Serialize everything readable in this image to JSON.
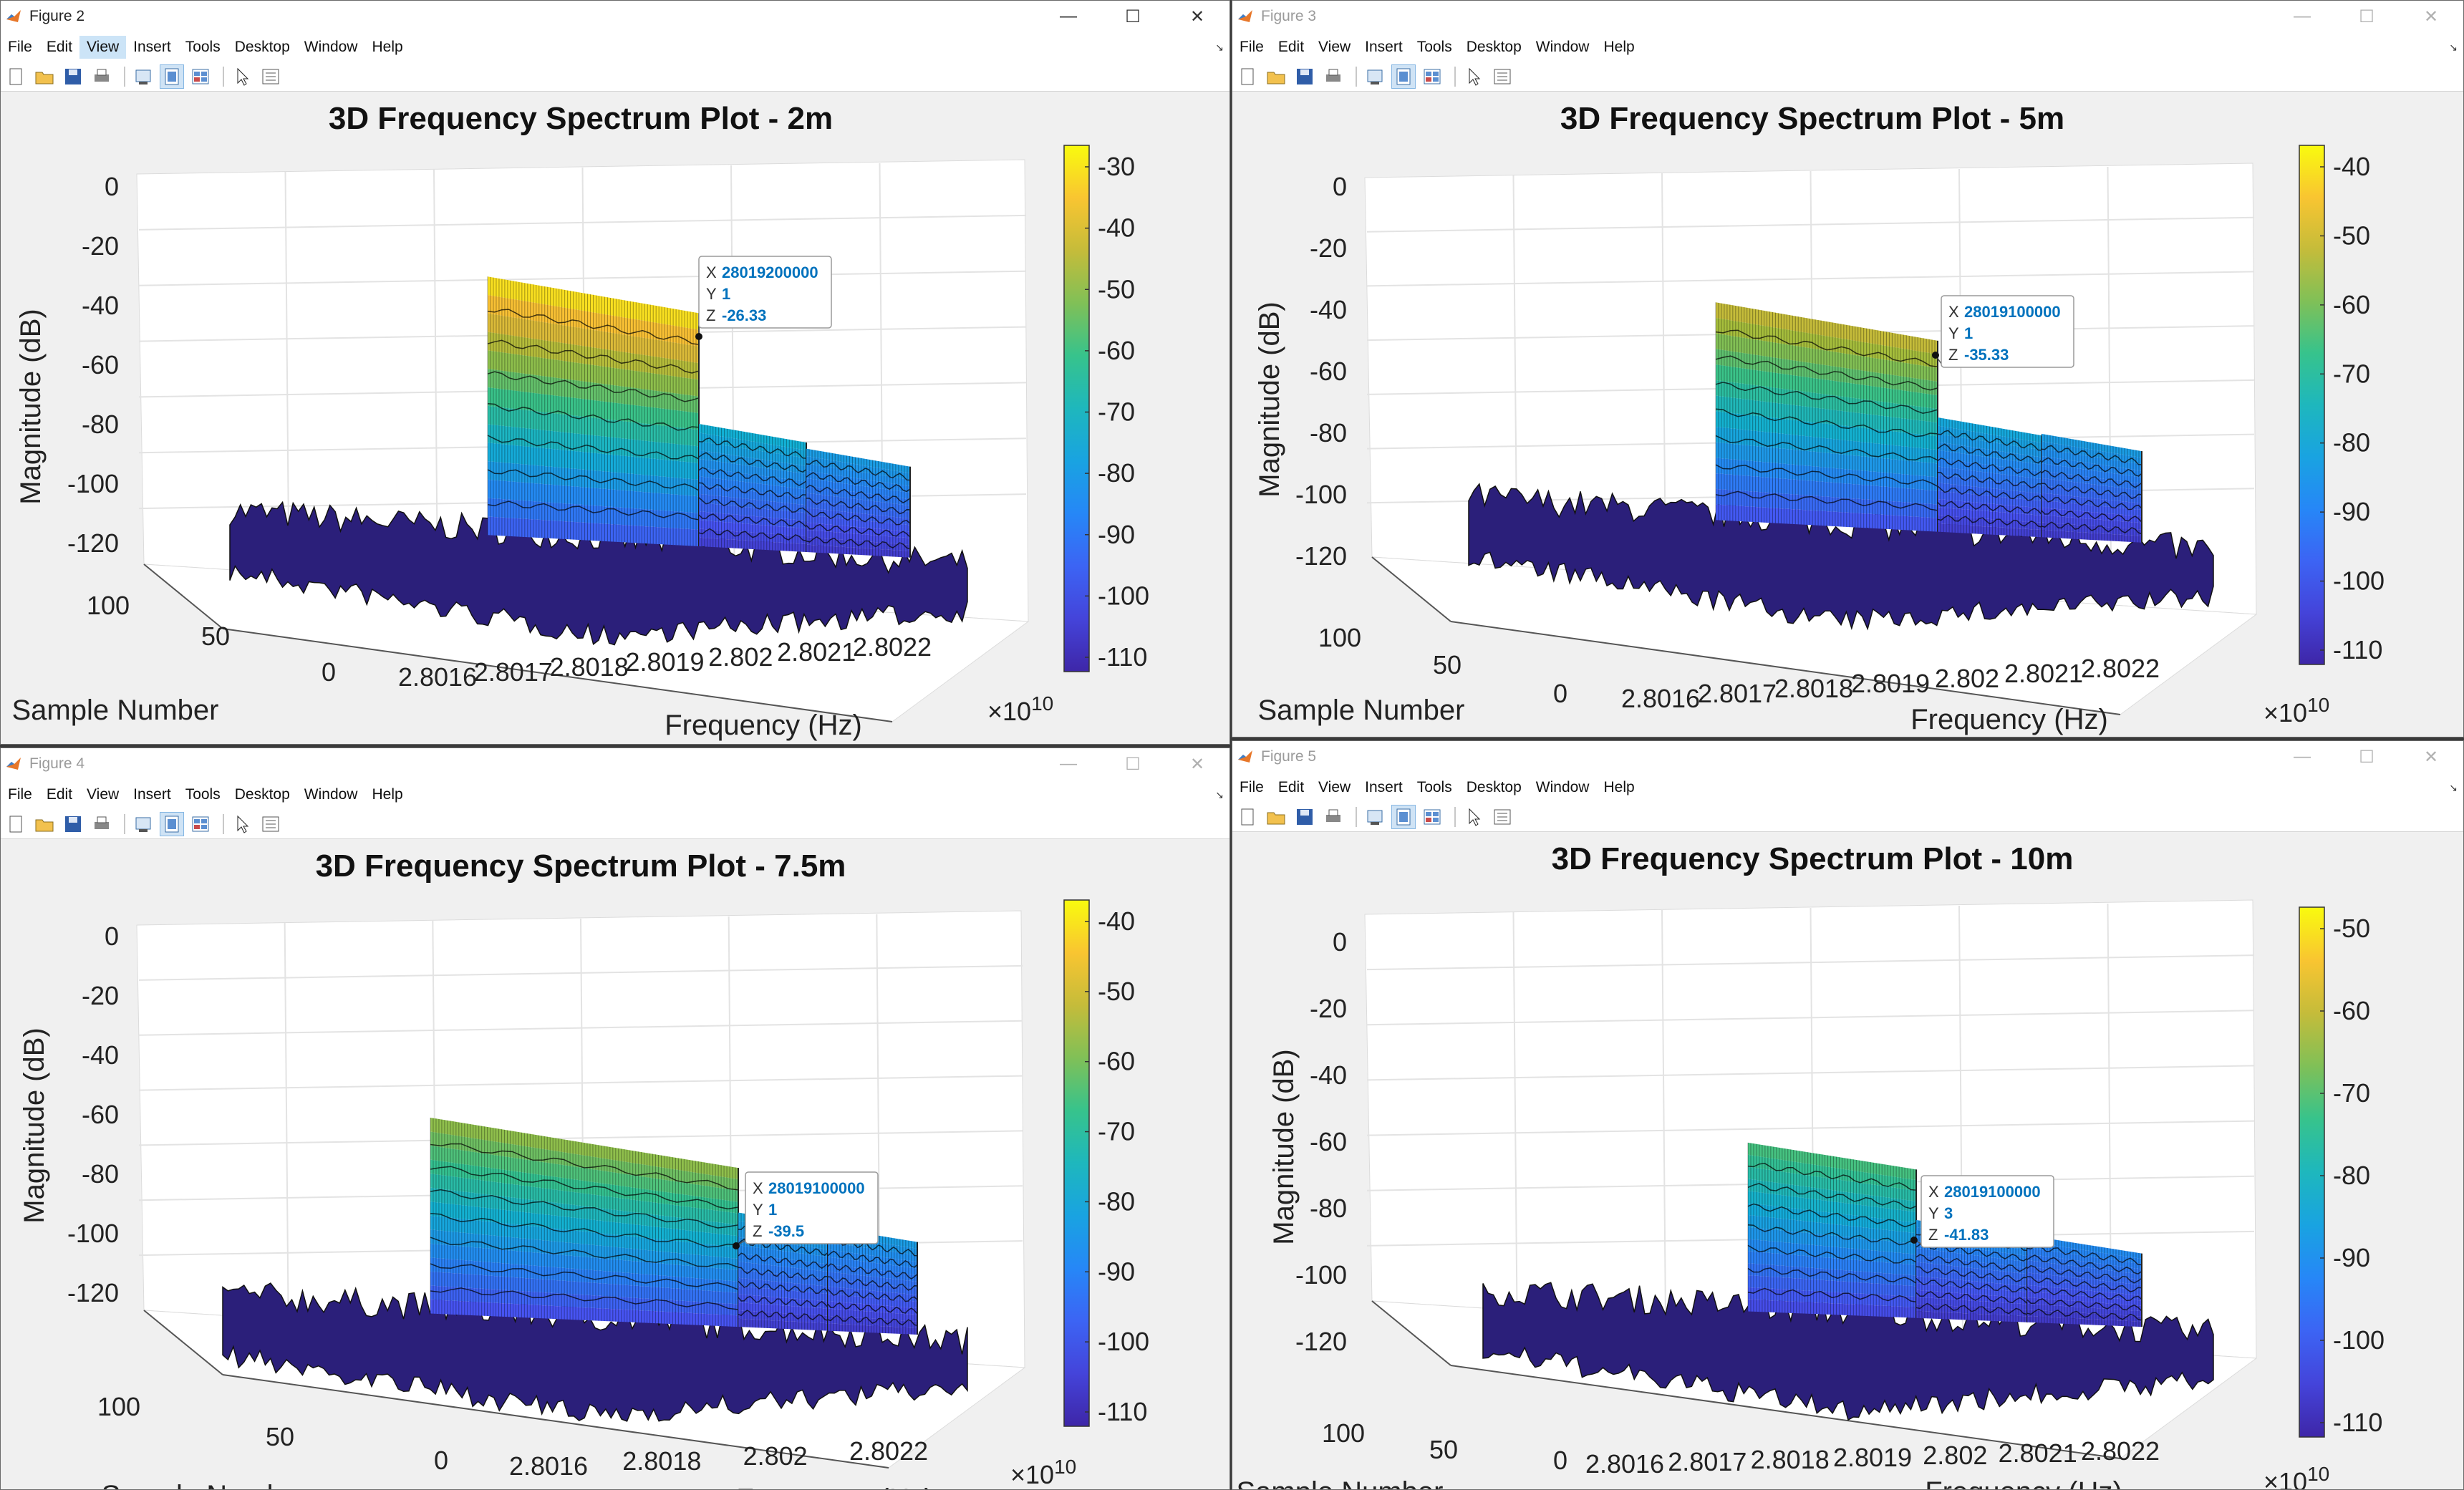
{
  "menu": [
    "File",
    "Edit",
    "View",
    "Insert",
    "Tools",
    "Desktop",
    "Window",
    "Help"
  ],
  "window_controls": {
    "minimize": "—",
    "maximize": "☐",
    "close": "✕"
  },
  "icons": [
    "new-file-icon",
    "open-folder-icon",
    "save-icon",
    "print-icon",
    "print-preview-icon",
    "link-axes-icon",
    "dock-icon",
    "pointer-icon",
    "property-inspector-icon"
  ],
  "colors": {
    "accent_datatip": "#0072bd",
    "colorbar_top": "#f9fb0e",
    "colorbar_bottom": "#3e26a8"
  },
  "figures": [
    {
      "window_title": "Figure 2",
      "active_menu": "View",
      "plot_title": "3D Frequency Spectrum Plot - 2m",
      "z_label": "Magnitude (dB)",
      "y_label": "Sample Number",
      "x_label": "Frequency (Hz)",
      "x_exponent": "×10",
      "x_exponent_power": "10",
      "z_ticks": [
        "0",
        "-20",
        "-40",
        "-60",
        "-80",
        "-100",
        "-120"
      ],
      "y_ticks": [
        "100",
        "50",
        "0"
      ],
      "x_ticks": [
        "2.8016",
        "2.8017",
        "2.8018",
        "2.8019",
        "2.802",
        "2.8021",
        "2.8022"
      ],
      "colorbar_ticks": [
        "-30",
        "-40",
        "-50",
        "-60",
        "-70",
        "-80",
        "-90",
        "-100",
        "-110"
      ],
      "datatip": {
        "x": "28019200000",
        "y": "1",
        "z": "-26.33"
      }
    },
    {
      "window_title": "Figure 3",
      "active_menu": "",
      "plot_title": "3D Frequency Spectrum Plot - 5m",
      "z_label": "Magnitude (dB)",
      "y_label": "Sample Number",
      "x_label": "Frequency (Hz)",
      "x_exponent": "×10",
      "x_exponent_power": "10",
      "z_ticks": [
        "0",
        "-20",
        "-40",
        "-60",
        "-80",
        "-100",
        "-120"
      ],
      "y_ticks": [
        "100",
        "50",
        "0"
      ],
      "x_ticks": [
        "2.8016",
        "2.8017",
        "2.8018",
        "2.8019",
        "2.802",
        "2.8021",
        "2.8022"
      ],
      "colorbar_ticks": [
        "-40",
        "-50",
        "-60",
        "-70",
        "-80",
        "-90",
        "-100",
        "-110"
      ],
      "datatip": {
        "x": "28019100000",
        "y": "1",
        "z": "-35.33"
      }
    },
    {
      "window_title": "Figure 4",
      "active_menu": "",
      "plot_title": "3D Frequency Spectrum Plot - 7.5m",
      "z_label": "Magnitude (dB)",
      "y_label": "Sample Number",
      "x_label": "Frequency (Hz)",
      "x_exponent": "×10",
      "x_exponent_power": "10",
      "z_ticks": [
        "0",
        "-20",
        "-40",
        "-60",
        "-80",
        "-100",
        "-120"
      ],
      "y_ticks": [
        "100",
        "50",
        "0"
      ],
      "x_ticks": [
        "2.8016",
        "2.8018",
        "2.802",
        "2.8022"
      ],
      "colorbar_ticks": [
        "-40",
        "-50",
        "-60",
        "-70",
        "-80",
        "-90",
        "-100",
        "-110"
      ],
      "datatip": {
        "x": "28019100000",
        "y": "1",
        "z": "-39.5"
      }
    },
    {
      "window_title": "Figure 5",
      "active_menu": "",
      "plot_title": "3D Frequency Spectrum Plot - 10m",
      "z_label": "Magnitude (dB)",
      "y_label": "Sample Number",
      "x_label": "Frequency (Hz)",
      "x_exponent": "×10",
      "x_exponent_power": "10",
      "z_ticks": [
        "0",
        "-20",
        "-40",
        "-60",
        "-80",
        "-100",
        "-120"
      ],
      "y_ticks": [
        "100",
        "50",
        "0"
      ],
      "x_ticks": [
        "2.8016",
        "2.8017",
        "2.8018",
        "2.8019",
        "2.802",
        "2.8021",
        "2.8022"
      ],
      "colorbar_ticks": [
        "-50",
        "-60",
        "-70",
        "-80",
        "-90",
        "-100",
        "-110"
      ],
      "datatip": {
        "x": "28019100000",
        "y": "3",
        "z": "-41.83"
      }
    }
  ]
}
